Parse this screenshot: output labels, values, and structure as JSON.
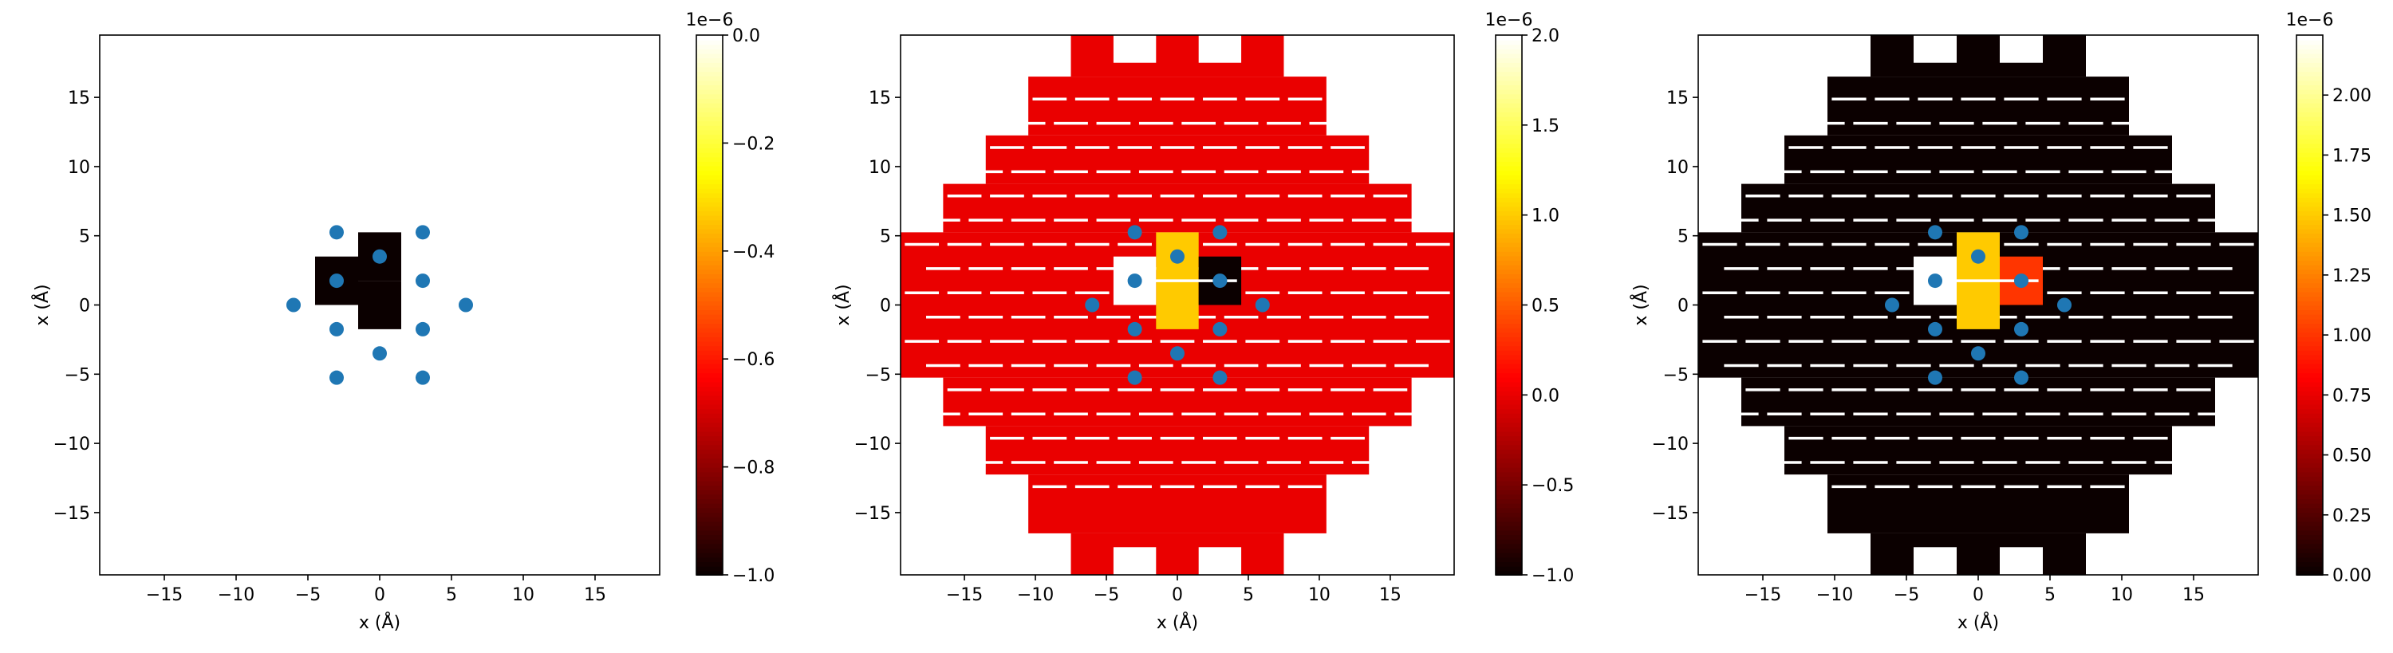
{
  "chart_data": [
    {
      "type": "heatmap",
      "title": "",
      "xlabel": "x (Å)",
      "ylabel": "x (Å)",
      "xlim": [
        -19.5,
        19.5
      ],
      "ylim": [
        -19.5,
        19.5
      ],
      "xticks": [
        -15,
        -10,
        -5,
        0,
        5,
        10,
        15
      ],
      "yticks": [
        -15,
        -10,
        -5,
        0,
        5,
        10,
        15
      ],
      "colormap": "hot",
      "colorbar": {
        "min": -1.0,
        "max": 0.0,
        "ticks": [
          -1.0,
          -0.8,
          -0.6,
          -0.4,
          -0.2,
          0.0
        ],
        "tick_labels": [
          "−1.0",
          "−0.8",
          "−0.6",
          "−0.4",
          "−0.2",
          "0.0"
        ],
        "offset_label": "1e−6"
      },
      "background": "fill",
      "fill_value": null,
      "special": [
        {
          "x": 0,
          "y": 3.5,
          "value": -1.0
        },
        {
          "x": 0,
          "y": 0.0,
          "value": -1.0
        },
        {
          "x": -3,
          "y": 1.75,
          "value": -1.0
        }
      ],
      "points": [
        [
          -6,
          0
        ],
        [
          6,
          0
        ],
        [
          -3,
          1.75
        ],
        [
          3,
          1.75
        ],
        [
          -3,
          -1.75
        ],
        [
          3,
          -1.75
        ],
        [
          0,
          3.5
        ],
        [
          0,
          -3.5
        ],
        [
          -3,
          5.25
        ],
        [
          3,
          5.25
        ],
        [
          -3,
          -5.25
        ],
        [
          3,
          -5.25
        ]
      ],
      "point_color": "#1f77b4"
    },
    {
      "type": "heatmap",
      "title": "",
      "xlabel": "x (Å)",
      "ylabel": "x (Å)",
      "xlim": [
        -19.5,
        19.5
      ],
      "ylim": [
        -19.5,
        19.5
      ],
      "xticks": [
        -15,
        -10,
        -5,
        0,
        5,
        10,
        15
      ],
      "yticks": [
        -15,
        -10,
        -5,
        0,
        5,
        10,
        15
      ],
      "colormap": "hot",
      "colorbar": {
        "min": -1.0,
        "max": 2.0,
        "ticks": [
          -1.0,
          -0.5,
          0.0,
          0.5,
          1.0,
          1.5,
          2.0
        ],
        "tick_labels": [
          "−1.0",
          "−0.5",
          "0.0",
          "0.5",
          "1.0",
          "1.5",
          "2.0"
        ],
        "offset_label": "1e−6"
      },
      "background": "fill",
      "fill_value": 0.0,
      "special": [
        {
          "x": 0,
          "y": 3.5,
          "value": 1.0
        },
        {
          "x": 0,
          "y": 0.0,
          "value": 1.0
        },
        {
          "x": 3,
          "y": 1.75,
          "value": -1.0
        },
        {
          "x": -3,
          "y": 1.75,
          "value": 2.0
        }
      ],
      "points": [
        [
          -6,
          0
        ],
        [
          6,
          0
        ],
        [
          -3,
          1.75
        ],
        [
          3,
          1.75
        ],
        [
          -3,
          -1.75
        ],
        [
          3,
          -1.75
        ],
        [
          0,
          3.5
        ],
        [
          0,
          -3.5
        ],
        [
          -3,
          5.25
        ],
        [
          3,
          5.25
        ],
        [
          -3,
          -5.25
        ],
        [
          3,
          -5.25
        ]
      ],
      "point_color": "#1f77b4"
    },
    {
      "type": "heatmap",
      "title": "",
      "xlabel": "x (Å)",
      "ylabel": "x (Å)",
      "xlim": [
        -19.5,
        19.5
      ],
      "ylim": [
        -19.5,
        19.5
      ],
      "xticks": [
        -15,
        -10,
        -5,
        0,
        5,
        10,
        15
      ],
      "yticks": [
        -15,
        -10,
        -5,
        0,
        5,
        10,
        15
      ],
      "colormap": "hot",
      "colorbar": {
        "min": 0.0,
        "max": 2.25,
        "ticks": [
          0.0,
          0.25,
          0.5,
          0.75,
          1.0,
          1.25,
          1.5,
          1.75,
          2.0
        ],
        "tick_labels": [
          "0.00",
          "0.25",
          "0.50",
          "0.75",
          "1.00",
          "1.25",
          "1.50",
          "1.75",
          "2.00"
        ],
        "offset_label": "1e−6"
      },
      "background": "fill",
      "fill_value": 0.0,
      "special": [
        {
          "x": 0,
          "y": 3.5,
          "value": 1.5
        },
        {
          "x": 0,
          "y": 0.0,
          "value": 1.5
        },
        {
          "x": 3,
          "y": 1.75,
          "value": 1.0
        },
        {
          "x": -3,
          "y": 1.75,
          "value": 2.25
        }
      ],
      "points": [
        [
          -6,
          0
        ],
        [
          6,
          0
        ],
        [
          -3,
          1.75
        ],
        [
          3,
          1.75
        ],
        [
          -3,
          -1.75
        ],
        [
          3,
          -1.75
        ],
        [
          0,
          3.5
        ],
        [
          0,
          -3.5
        ],
        [
          -3,
          5.25
        ],
        [
          3,
          5.25
        ],
        [
          -3,
          -5.25
        ],
        [
          3,
          -5.25
        ]
      ],
      "point_color": "#1f77b4"
    }
  ]
}
